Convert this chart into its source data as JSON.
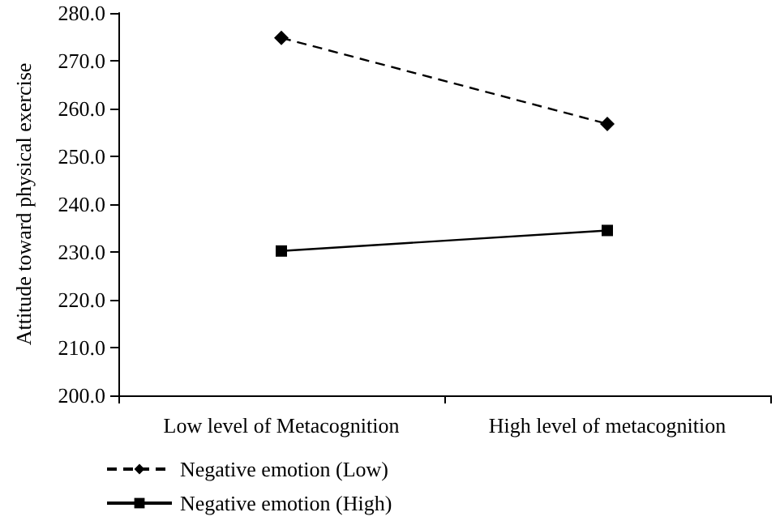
{
  "chart_data": {
    "type": "line",
    "ylabel": "Attitude toward physical exercise",
    "categories": [
      "Low level of Metacognition",
      "High level of metacognition"
    ],
    "series": [
      {
        "name": "Negative emotion (Low)",
        "color": "#000000",
        "values": [
          274.8,
          256.8
        ],
        "marker": "diamond",
        "line_style": "dashed"
      },
      {
        "name": "Negative emotion (High)",
        "color": "#000000",
        "values": [
          230.2,
          234.5
        ],
        "marker": "square",
        "line_style": "solid"
      }
    ],
    "ylim": [
      200,
      280
    ],
    "yticks": [
      {
        "value": 200,
        "label": "200.0"
      },
      {
        "value": 210,
        "label": "210.0"
      },
      {
        "value": 220,
        "label": "220.0"
      },
      {
        "value": 230,
        "label": "230.0"
      },
      {
        "value": 240,
        "label": "240.0"
      },
      {
        "value": 250,
        "label": "250.0"
      },
      {
        "value": 260,
        "label": "260.0"
      },
      {
        "value": 270,
        "label": "270.0"
      },
      {
        "value": 280,
        "label": "280.0"
      }
    ],
    "grid": false,
    "legend": "bottom left"
  }
}
